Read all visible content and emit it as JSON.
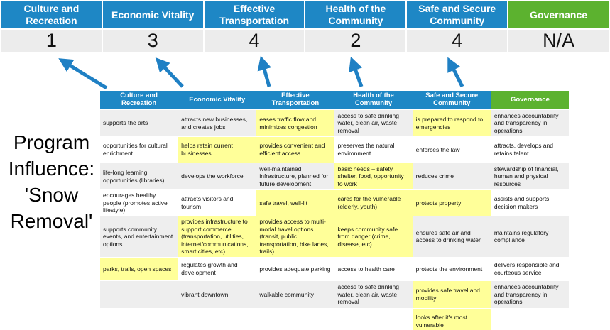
{
  "program_label": "Program\nInfluence:\n'Snow\nRemoval'",
  "colors": {
    "header_blue": "#1e87c5",
    "governance_green": "#5cb22f",
    "highlight_yellow": "#ffff99",
    "score_bg": "#ececec",
    "band_gray": "#eeeeee",
    "arrow_blue": "#1f80c4"
  },
  "scorecard": {
    "items": [
      {
        "label": "Culture and Recreation",
        "score": "1",
        "color": "#1e87c5"
      },
      {
        "label": "Economic Vitality",
        "score": "3",
        "color": "#1e87c5"
      },
      {
        "label": "Effective Transportation",
        "score": "4",
        "color": "#1e87c5"
      },
      {
        "label": "Health of the Community",
        "score": "2",
        "color": "#1e87c5"
      },
      {
        "label": "Safe and Secure Community",
        "score": "4",
        "color": "#1e87c5"
      },
      {
        "label": "Governance",
        "score": "N/A",
        "color": "#5cb22f"
      }
    ]
  },
  "matrix": {
    "headers": [
      {
        "label": "Culture and Recreation",
        "color": "#1e87c5"
      },
      {
        "label": "Economic Vitality",
        "color": "#1e87c5"
      },
      {
        "label": "Effective Transportation",
        "color": "#1e87c5"
      },
      {
        "label": "Health of the Community",
        "color": "#1e87c5"
      },
      {
        "label": "Safe and Secure Community",
        "color": "#1e87c5"
      },
      {
        "label": "Governance",
        "color": "#5cb22f"
      }
    ],
    "rows": [
      [
        {
          "text": "supports the arts",
          "highlight": false
        },
        {
          "text": "attracts new businesses, and creates jobs",
          "highlight": false
        },
        {
          "text": "eases traffic flow and minimizes congestion",
          "highlight": true
        },
        {
          "text": "access to safe drinking water, clean air, waste removal",
          "highlight": false
        },
        {
          "text": "is prepared to respond to emergencies",
          "highlight": true
        },
        {
          "text": "enhances accountability and transparency in operations",
          "highlight": false
        }
      ],
      [
        {
          "text": "opportunities for cultural enrichment",
          "highlight": false
        },
        {
          "text": "helps retain current businesses",
          "highlight": true
        },
        {
          "text": "provides convenient and efficient access",
          "highlight": true
        },
        {
          "text": "preserves the natural environment",
          "highlight": false
        },
        {
          "text": "enforces the law",
          "highlight": false
        },
        {
          "text": "attracts, develops and retains talent",
          "highlight": false
        }
      ],
      [
        {
          "text": "life-long learning opportunities (libraries)",
          "highlight": false
        },
        {
          "text": "develops the workforce",
          "highlight": false
        },
        {
          "text": "well-maintained infrastructure, planned for future development",
          "highlight": false
        },
        {
          "text": "basic needs – safety, shelter, food, opportunity to work",
          "highlight": true
        },
        {
          "text": "reduces crime",
          "highlight": false
        },
        {
          "text": "stewardship of financial, human and physical resources",
          "highlight": false
        }
      ],
      [
        {
          "text": "encourages healthy people (promotes active lifestyle)",
          "highlight": false
        },
        {
          "text": "attracts visitors and tourism",
          "highlight": false
        },
        {
          "text": "safe travel, well-lit",
          "highlight": true
        },
        {
          "text": "cares for the vulnerable (elderly, youth)",
          "highlight": true
        },
        {
          "text": "protects property",
          "highlight": true
        },
        {
          "text": "assists and supports decision makers",
          "highlight": false
        }
      ],
      [
        {
          "text": "supports community events, and entertainment options",
          "highlight": false
        },
        {
          "text": "provides infrastructure to support commerce (transportation, utilities, internet/communications, smart cities, etc)",
          "highlight": true
        },
        {
          "text": "provides access to multi-modal travel options (transit, public transportation, bike lanes, trails)",
          "highlight": true
        },
        {
          "text": "keeps community safe from danger (crime, disease, etc)",
          "highlight": true
        },
        {
          "text": "ensures safe air and access to drinking water",
          "highlight": false
        },
        {
          "text": "maintains regulatory compliance",
          "highlight": false
        }
      ],
      [
        {
          "text": "parks, trails, open spaces",
          "highlight": true
        },
        {
          "text": "regulates growth and development",
          "highlight": false
        },
        {
          "text": "provides adequate parking",
          "highlight": false
        },
        {
          "text": "access to health care",
          "highlight": false
        },
        {
          "text": "protects the environment",
          "highlight": false
        },
        {
          "text": "delivers responsible and courteous service",
          "highlight": false
        }
      ],
      [
        {
          "text": "",
          "highlight": false
        },
        {
          "text": "vibrant downtown",
          "highlight": false
        },
        {
          "text": "walkable community",
          "highlight": false
        },
        {
          "text": "access to safe drinking water, clean air, waste removal",
          "highlight": false
        },
        {
          "text": "provides safe travel and mobility",
          "highlight": true
        },
        {
          "text": "enhances accountability and transparency in operations",
          "highlight": false
        }
      ],
      [
        {
          "text": "",
          "highlight": false
        },
        {
          "text": "",
          "highlight": false
        },
        {
          "text": "",
          "highlight": false
        },
        {
          "text": "",
          "highlight": false
        },
        {
          "text": "looks after it's most vulnerable",
          "highlight": true
        },
        {
          "text": "",
          "highlight": false
        }
      ]
    ]
  }
}
